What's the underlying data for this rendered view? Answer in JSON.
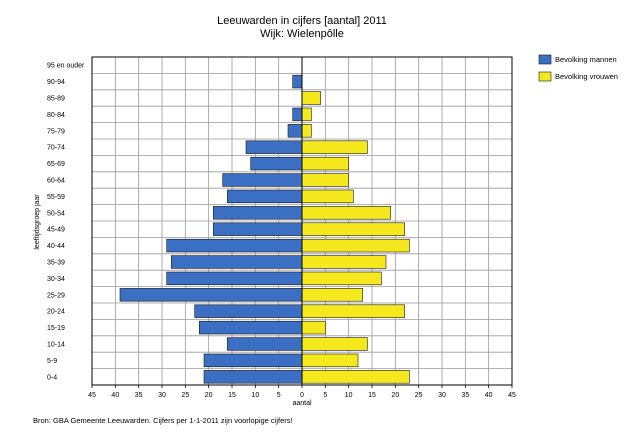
{
  "chart_data": {
    "type": "bar",
    "orientation": "horizontal-population-pyramid",
    "title": "Leeuwarden in cijfers [aantal] 2011",
    "subtitle": "Wijk: Wielenpôlle",
    "xlabel": "aantal",
    "ylabel": "leeftijdsgroep jaar",
    "xlim": [
      -45,
      45
    ],
    "xticks": [
      "45",
      "40",
      "35",
      "30",
      "25",
      "20",
      "15",
      "10",
      "5",
      "0",
      "5",
      "10",
      "15",
      "20",
      "25",
      "30",
      "35",
      "40",
      "45"
    ],
    "grid": true,
    "legend_position": "right",
    "categories": [
      "0-4",
      "5-9",
      "10-14",
      "15-19",
      "20-24",
      "25-29",
      "30-34",
      "35-39",
      "40-44",
      "45-49",
      "50-54",
      "55-59",
      "60-64",
      "65-69",
      "70-74",
      "75-79",
      "80-84",
      "85-89",
      "90-94",
      "95 en ouder"
    ],
    "series": [
      {
        "name": "Bevolking mannen",
        "color": "#3a6fc4",
        "side": "left",
        "values": [
          21,
          21,
          16,
          22,
          23,
          39,
          29,
          28,
          29,
          19,
          19,
          16,
          17,
          11,
          12,
          3,
          2,
          0,
          2,
          0
        ]
      },
      {
        "name": "Bevolking vrouwen",
        "color": "#f5e81c",
        "side": "right",
        "values": [
          23,
          12,
          14,
          5,
          22,
          13,
          17,
          18,
          23,
          22,
          19,
          11,
          10,
          10,
          14,
          2,
          2,
          4,
          0,
          0
        ]
      }
    ]
  },
  "source_note": "Bron: GBA Gemeente Leeuwarden. Cijfers per 1-1-2011 zijn voorlopige cijfers!"
}
